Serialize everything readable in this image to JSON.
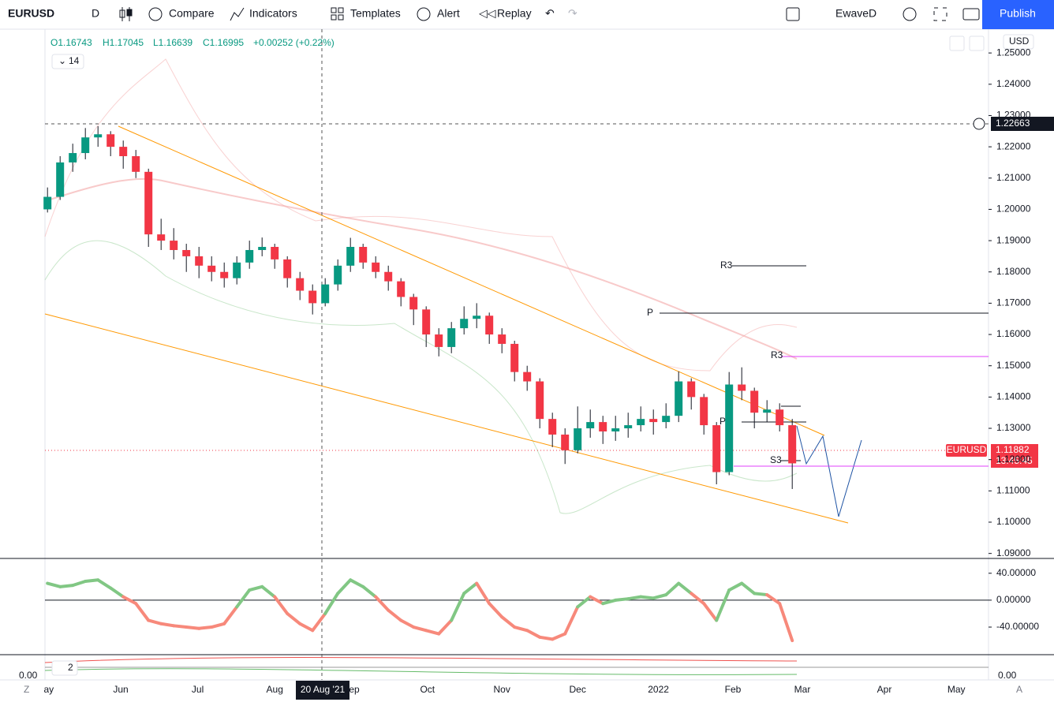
{
  "toolbar": {
    "symbol": "EURUSD",
    "interval": "D",
    "compare": "Compare",
    "indicators": "Indicators",
    "templates": "Templates",
    "alert": "Alert",
    "replay": "Replay",
    "layout": "EwaveD",
    "publish": "Publish"
  },
  "legend": {
    "open": "O1.16743",
    "high": "H1.17045",
    "low": "L1.16639",
    "close": "C1.16995",
    "change": "+0.00252 (+0.22%)",
    "indicator_length": "14",
    "currency": "USD"
  },
  "annotations": {
    "r3_a": "R3",
    "p_a": "P",
    "r3_b": "R3",
    "p_b": "P",
    "s3": "S3"
  },
  "price_labels": {
    "crosshair": "1.22663",
    "symbol": "EURUSD",
    "last": "1.11882",
    "countdown": "13:45:45"
  },
  "bottom_pane": {
    "length": "2",
    "left_value": "0.00",
    "right_value": "0.00"
  },
  "axis_buttons": {
    "left": "Z",
    "right": "A"
  },
  "chart_data": {
    "type": "candlestick",
    "symbol": "EURUSD",
    "xlim": [
      -0.2,
      74.55
    ],
    "xticks": [
      {
        "value": 0.1,
        "label": "ay"
      },
      {
        "value": 5.8,
        "label": "Jun"
      },
      {
        "value": 11.9,
        "label": "Jul"
      },
      {
        "value": 18,
        "label": "Aug"
      },
      {
        "value": 24.3,
        "label": "ep"
      },
      {
        "value": 30.1,
        "label": "Oct"
      },
      {
        "value": 36,
        "label": "Nov"
      },
      {
        "value": 42,
        "label": "Dec"
      },
      {
        "value": 48.4,
        "label": "2022"
      },
      {
        "value": 54.3,
        "label": "Feb"
      },
      {
        "value": 59.8,
        "label": "Mar"
      },
      {
        "value": 66.3,
        "label": "Apr"
      },
      {
        "value": 72,
        "label": "May"
      }
    ],
    "crosshair_x": {
      "value": 21.8,
      "label": "20 Aug '21"
    },
    "ylim": [
      1.0884,
      1.2576
    ],
    "yticks": [
      {
        "value": 1.25,
        "label": "1.25000"
      },
      {
        "value": 1.24,
        "label": "1.24000"
      },
      {
        "value": 1.23,
        "label": "1.23000"
      },
      {
        "value": 1.22,
        "label": "1.22000"
      },
      {
        "value": 1.21,
        "label": "1.21000"
      },
      {
        "value": 1.2,
        "label": "1.20000"
      },
      {
        "value": 1.19,
        "label": "1.19000"
      },
      {
        "value": 1.18,
        "label": "1.18000"
      },
      {
        "value": 1.17,
        "label": "1.17000"
      },
      {
        "value": 1.16,
        "label": "1.16000"
      },
      {
        "value": 1.15,
        "label": "1.15000"
      },
      {
        "value": 1.14,
        "label": "1.14000"
      },
      {
        "value": 1.13,
        "label": "1.13000"
      },
      {
        "value": 1.12,
        "label": "1.12000"
      },
      {
        "value": 1.11,
        "label": "1.11000"
      },
      {
        "value": 1.1,
        "label": "1.10000"
      },
      {
        "value": 1.09,
        "label": "1.09000"
      }
    ],
    "up_color": "#089981",
    "down_color": "#f23645",
    "open": [
      1.2,
      1.204,
      1.215,
      1.218,
      1.223,
      1.224,
      1.22,
      1.217,
      1.212,
      1.192,
      1.19,
      1.187,
      1.185,
      1.182,
      1.18,
      1.178,
      1.183,
      1.187,
      1.188,
      1.184,
      1.178,
      1.174,
      1.17,
      1.176,
      1.182,
      1.188,
      1.183,
      1.18,
      1.177,
      1.172,
      1.168,
      1.16,
      1.156,
      1.162,
      1.165,
      1.166,
      1.16,
      1.157,
      1.148,
      1.145,
      1.133,
      1.128,
      1.123,
      1.13,
      1.132,
      1.129,
      1.13,
      1.131,
      1.133,
      1.132,
      1.134,
      1.145,
      1.14,
      1.131,
      1.116,
      1.144,
      1.142,
      1.135,
      1.136,
      1.131
    ],
    "high": [
      1.207,
      1.217,
      1.221,
      1.226,
      1.2266,
      1.225,
      1.222,
      1.219,
      1.213,
      1.197,
      1.194,
      1.189,
      1.188,
      1.185,
      1.183,
      1.185,
      1.19,
      1.191,
      1.189,
      1.185,
      1.18,
      1.176,
      1.178,
      1.184,
      1.1909,
      1.189,
      1.185,
      1.182,
      1.178,
      1.173,
      1.169,
      1.162,
      1.164,
      1.169,
      1.17,
      1.167,
      1.162,
      1.158,
      1.15,
      1.146,
      1.135,
      1.13,
      1.137,
      1.136,
      1.134,
      1.134,
      1.135,
      1.137,
      1.136,
      1.138,
      1.1482,
      1.146,
      1.141,
      1.132,
      1.148,
      1.1495,
      1.143,
      1.139,
      1.138,
      1.133
    ],
    "low": [
      1.199,
      1.203,
      1.212,
      1.216,
      1.22,
      1.217,
      1.213,
      1.21,
      1.188,
      1.187,
      1.184,
      1.18,
      1.178,
      1.177,
      1.175,
      1.176,
      1.181,
      1.185,
      1.181,
      1.175,
      1.171,
      1.1664,
      1.169,
      1.174,
      1.18,
      1.181,
      1.178,
      1.174,
      1.169,
      1.163,
      1.156,
      1.153,
      1.154,
      1.16,
      1.162,
      1.157,
      1.154,
      1.145,
      1.142,
      1.13,
      1.124,
      1.1186,
      1.122,
      1.127,
      1.125,
      1.126,
      1.127,
      1.129,
      1.128,
      1.13,
      1.132,
      1.136,
      1.128,
      1.1121,
      1.115,
      1.139,
      1.13,
      1.132,
      1.129,
      1.1106
    ],
    "close": [
      1.204,
      1.215,
      1.218,
      1.223,
      1.224,
      1.22,
      1.217,
      1.212,
      1.192,
      1.19,
      1.187,
      1.185,
      1.182,
      1.18,
      1.178,
      1.183,
      1.187,
      1.188,
      1.184,
      1.178,
      1.174,
      1.17,
      1.176,
      1.182,
      1.188,
      1.183,
      1.18,
      1.177,
      1.172,
      1.168,
      1.16,
      1.156,
      1.162,
      1.165,
      1.166,
      1.16,
      1.157,
      1.148,
      1.145,
      1.133,
      1.128,
      1.123,
      1.13,
      1.132,
      1.129,
      1.13,
      1.131,
      1.133,
      1.132,
      1.134,
      1.145,
      1.14,
      1.131,
      1.116,
      1.144,
      1.142,
      1.135,
      1.136,
      1.131,
      1.1188
    ],
    "oscillator": {
      "ylim": [
        -81,
        62
      ],
      "yticks": [
        {
          "value": 40,
          "label": "40.00000"
        },
        {
          "value": 0,
          "label": "0.00000"
        },
        {
          "value": -40,
          "label": "-40.00000"
        }
      ],
      "pos_color": "#81c784",
      "neg_color": "#f7897b",
      "values": [
        25,
        20,
        22,
        28,
        30,
        18,
        5,
        -5,
        -30,
        -35,
        -38,
        -40,
        -42,
        -40,
        -35,
        -10,
        15,
        20,
        5,
        -20,
        -35,
        -45,
        -20,
        10,
        30,
        20,
        5,
        -15,
        -30,
        -40,
        -45,
        -50,
        -30,
        10,
        25,
        -5,
        -25,
        -40,
        -45,
        -55,
        -58,
        -50,
        -10,
        5,
        -5,
        0,
        2,
        5,
        3,
        8,
        25,
        10,
        -5,
        -30,
        15,
        25,
        10,
        8,
        -5,
        -60
      ]
    }
  }
}
